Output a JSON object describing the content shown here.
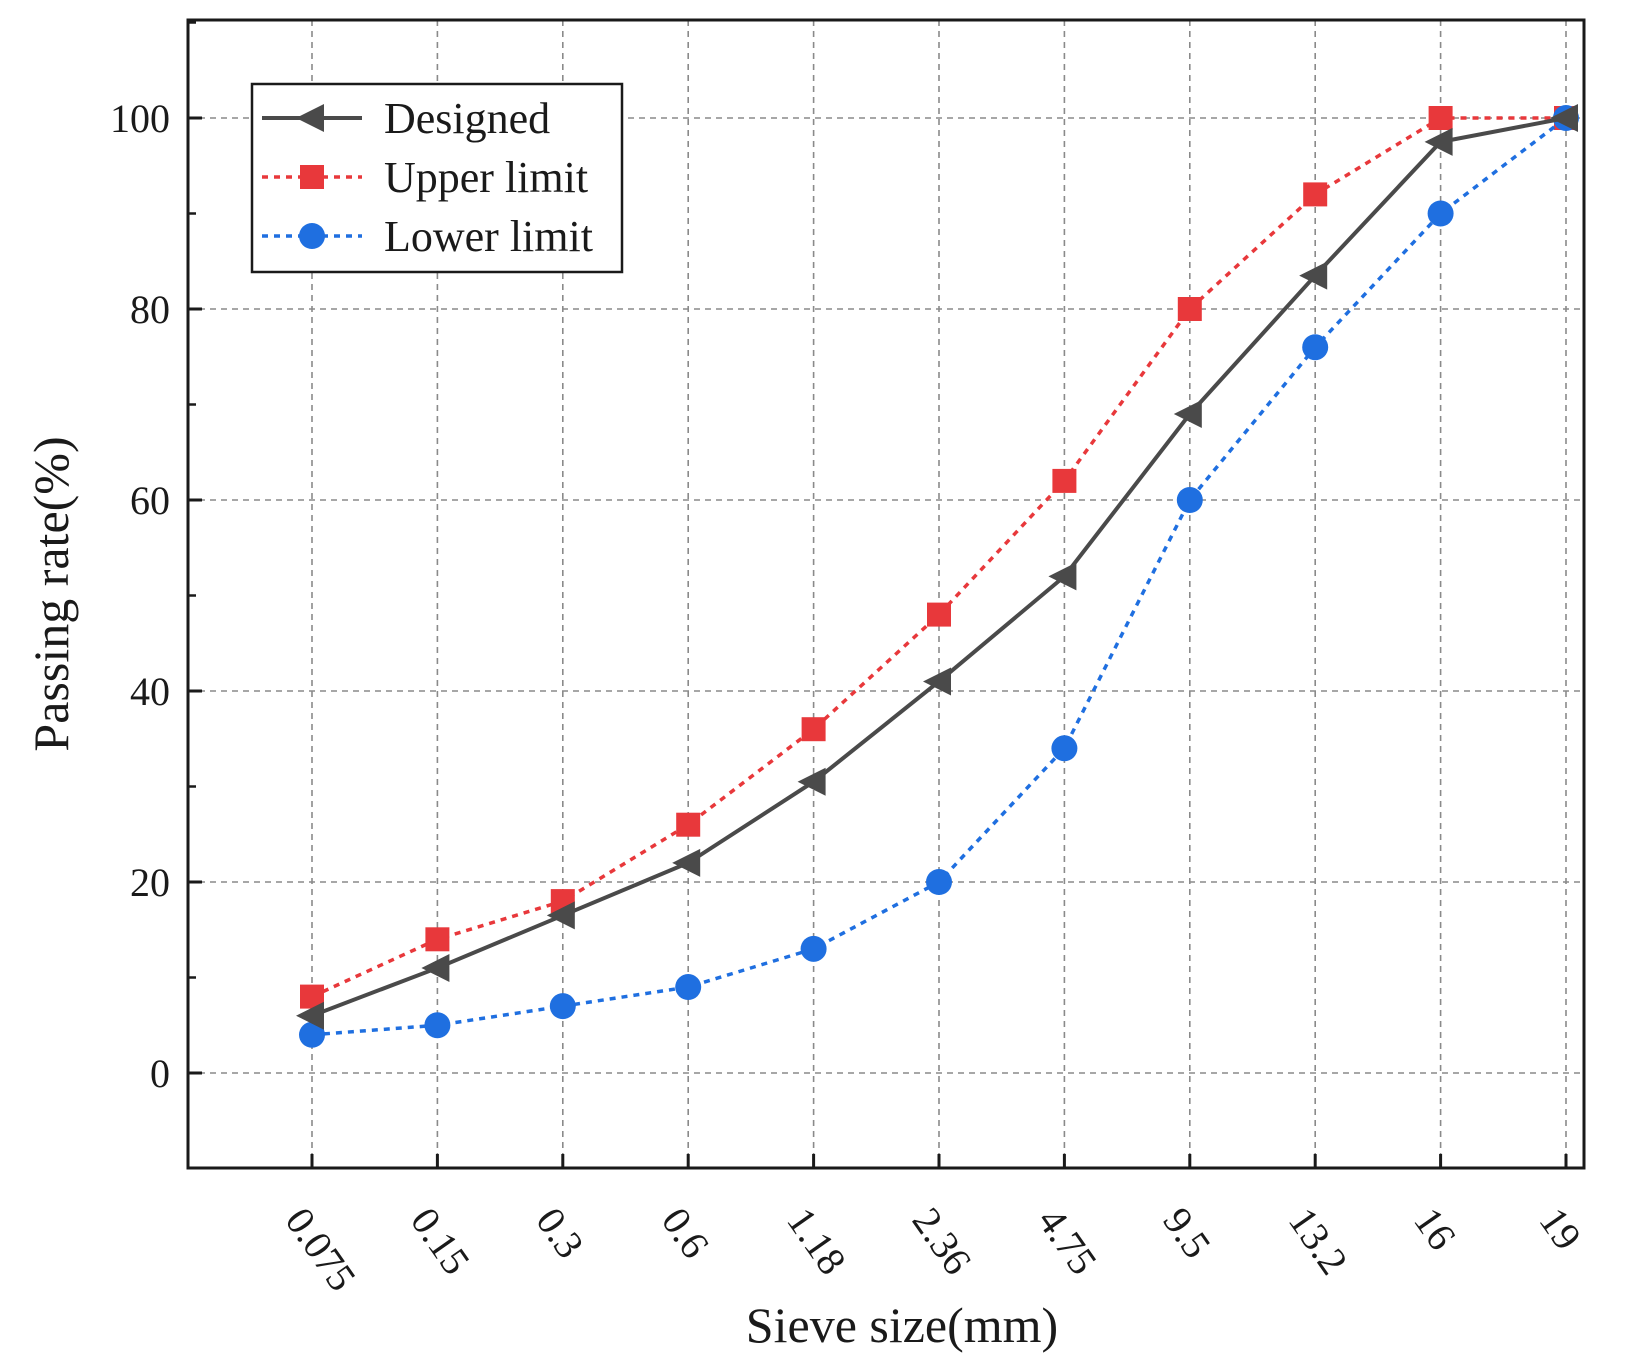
{
  "chart_data": {
    "type": "line",
    "title": "",
    "xlabel": "Sieve size(mm)",
    "ylabel": "Passing rate(%)",
    "categories": [
      "0.075",
      "0.15",
      "0.3",
      "0.6",
      "1.18",
      "2.36",
      "4.75",
      "9.5",
      "13.2",
      "16",
      "19"
    ],
    "ylim": [
      -10,
      110
    ],
    "yticks": [
      0,
      20,
      40,
      60,
      80,
      100
    ],
    "grid": true,
    "legend_position": "top-left",
    "series": [
      {
        "name": "Designed",
        "color": "#4a4a4a",
        "marker": "triangle-left",
        "line": "solid",
        "values": [
          6,
          11,
          16.5,
          22,
          30.5,
          41,
          52,
          69,
          83.5,
          97.5,
          100
        ]
      },
      {
        "name": "Upper limit",
        "color": "#e8383b",
        "marker": "square",
        "line": "dotted",
        "values": [
          8,
          14,
          18,
          26,
          36,
          48,
          62,
          80,
          92,
          100,
          100
        ]
      },
      {
        "name": "Lower limit",
        "color": "#1f6fe0",
        "marker": "circle",
        "line": "dotted",
        "values": [
          4,
          5,
          7,
          9,
          13,
          20,
          34,
          60,
          76,
          90,
          100
        ]
      }
    ]
  }
}
